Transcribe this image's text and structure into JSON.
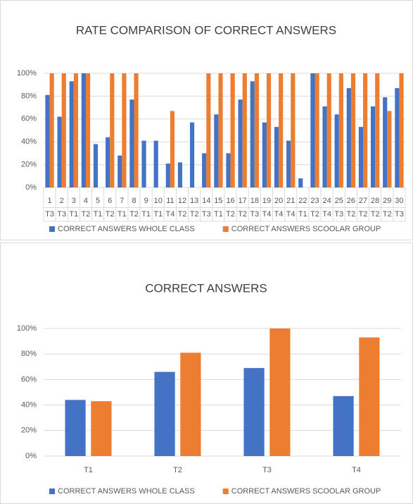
{
  "chart_data": [
    {
      "type": "bar",
      "title": "RATE COMPARISON OF CORRECT ANSWERS",
      "categories": [
        "1",
        "2",
        "3",
        "4",
        "5",
        "6",
        "7",
        "8",
        "9",
        "10",
        "11",
        "12",
        "13",
        "14",
        "15",
        "16",
        "17",
        "18",
        "19",
        "20",
        "21",
        "22",
        "23",
        "24",
        "25",
        "26",
        "27",
        "28",
        "29",
        "30"
      ],
      "category_groups": [
        "T3",
        "T3",
        "T1",
        "T2",
        "T1",
        "T2",
        "T1",
        "T2",
        "T1",
        "T1",
        "T4",
        "T2",
        "T2",
        "T3",
        "T1",
        "T2",
        "T2",
        "T3",
        "T4",
        "T4",
        "T4",
        "T1",
        "T2",
        "T4",
        "T3",
        "T2",
        "T2",
        "T2",
        "T2",
        "T3"
      ],
      "series": [
        {
          "name": "CORRECT ANSWERS WHOLE CLASS",
          "color": "#4472c4",
          "values": [
            81,
            62,
            93,
            100,
            38,
            44,
            28,
            77,
            41,
            41,
            21,
            22,
            57,
            30,
            64,
            30,
            77,
            93,
            57,
            53,
            41,
            8,
            100,
            71,
            64,
            87,
            53,
            71,
            79,
            87
          ]
        },
        {
          "name": "CORRECT ANSWERS SCOOLAR GROUP",
          "color": "#ed7d31",
          "values": [
            100,
            100,
            100,
            100,
            0,
            100,
            100,
            100,
            0,
            0,
            67,
            0,
            0,
            100,
            100,
            100,
            100,
            100,
            100,
            100,
            100,
            0,
            100,
            100,
            100,
            100,
            100,
            100,
            67,
            100
          ]
        }
      ],
      "ylim": [
        0,
        100
      ],
      "yticks": [
        {
          "value": 0,
          "label": "0%"
        },
        {
          "value": 20,
          "label": "20%"
        },
        {
          "value": 40,
          "label": "40%"
        },
        {
          "value": 60,
          "label": "60%"
        },
        {
          "value": 80,
          "label": "80%"
        },
        {
          "value": 100,
          "label": "100%"
        }
      ],
      "grid": true,
      "legend": "bottom"
    },
    {
      "type": "bar",
      "title": "CORRECT ANSWERS",
      "categories": [
        "T1",
        "T2",
        "T3",
        "T4"
      ],
      "series": [
        {
          "name": "CORRECT ANSWERS WHOLE CLASS",
          "color": "#4472c4",
          "values": [
            44,
            66,
            69,
            47
          ]
        },
        {
          "name": "CORRECT ANSWERS SCOOLAR GROUP",
          "color": "#ed7d31",
          "values": [
            43,
            81,
            100,
            93
          ]
        }
      ],
      "ylim": [
        0,
        100
      ],
      "yticks": [
        {
          "value": 0,
          "label": "0%"
        },
        {
          "value": 20,
          "label": "20%"
        },
        {
          "value": 40,
          "label": "40%"
        },
        {
          "value": 60,
          "label": "60%"
        },
        {
          "value": 80,
          "label": "80%"
        },
        {
          "value": 100,
          "label": "100%"
        }
      ],
      "grid": true,
      "legend": "bottom"
    }
  ]
}
